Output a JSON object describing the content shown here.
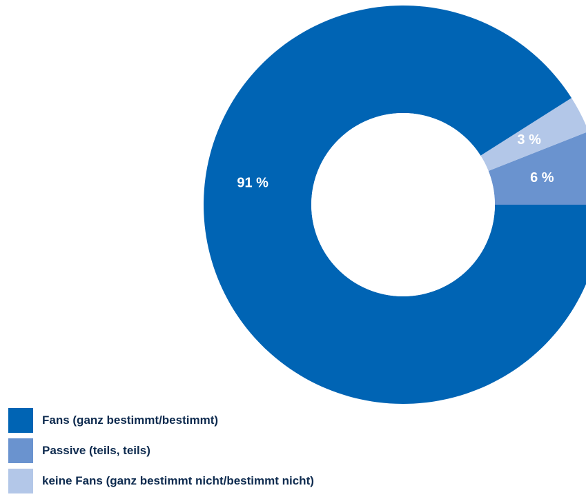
{
  "chart_data": {
    "type": "pie",
    "donut": true,
    "slices": [
      {
        "name": "Fans (ganz bestimmt/bestimmt)",
        "value": 91,
        "label": "91 %",
        "color": "#0064b4"
      },
      {
        "name": "Passive (teils, teils)",
        "value": 6,
        "label": "6 %",
        "color": "#6a93cf"
      },
      {
        "name": "keine Fans (ganz bestimmt nicht/bestimmt nicht)",
        "value": 3,
        "label": "3 %",
        "color": "#b3c7e8"
      }
    ],
    "legend_position": "bottom-left"
  }
}
